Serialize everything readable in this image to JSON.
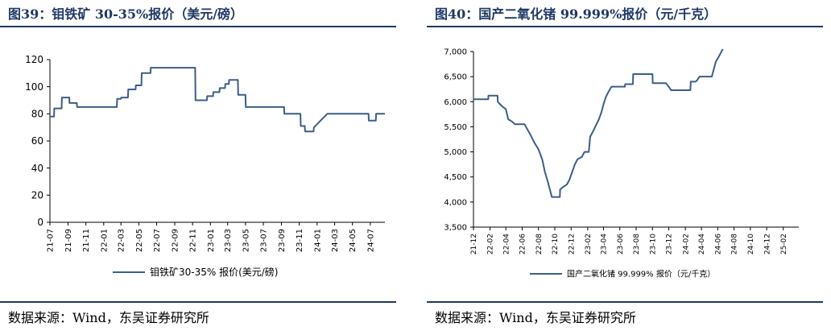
{
  "charts": [
    {
      "figure_title": "图39：钼铁矿 30-35%报价（美元/磅）",
      "source": "数据来源：Wind，东吴证券研究所"
    },
    {
      "figure_title": "图40：国产二氧化锗 99.999%报价（元/千克）",
      "source": "数据来源：Wind，东吴证券研究所"
    }
  ],
  "colors": {
    "line": "#3b5e8a",
    "title": "#1f3864",
    "axis": "#000000"
  },
  "chart_data": [
    {
      "type": "line",
      "title": "",
      "xlabel": "",
      "ylabel": "",
      "ylim": [
        0,
        120
      ],
      "y_ticks": [
        "0",
        "20",
        "40",
        "60",
        "80",
        "100",
        "120"
      ],
      "x_ticks": [
        "21-07",
        "21-09",
        "21-11",
        "22-01",
        "22-03",
        "22-05",
        "22-07",
        "22-09",
        "22-11",
        "23-01",
        "23-03",
        "23-05",
        "23-07",
        "23-09",
        "23-11",
        "24-01",
        "24-03",
        "24-05",
        "24-07"
      ],
      "x_range": [
        "2021-07-01",
        "2024-08-20"
      ],
      "grid": false,
      "legend": "bottom",
      "series": [
        {
          "name": "钼铁矿30-35% 报价(美元/磅)",
          "points": [
            [
              "2021-07-01",
              78
            ],
            [
              "2021-07-15",
              78
            ],
            [
              "2021-07-16",
              84
            ],
            [
              "2021-08-10",
              84
            ],
            [
              "2021-08-11",
              92
            ],
            [
              "2021-09-05",
              92
            ],
            [
              "2021-09-06",
              88
            ],
            [
              "2021-10-01",
              88
            ],
            [
              "2021-10-02",
              85
            ],
            [
              "2022-02-15",
              85
            ],
            [
              "2022-02-16",
              91
            ],
            [
              "2022-03-01",
              91
            ],
            [
              "2022-03-02",
              92
            ],
            [
              "2022-03-25",
              92
            ],
            [
              "2022-03-26",
              98
            ],
            [
              "2022-04-20",
              98
            ],
            [
              "2022-04-21",
              101
            ],
            [
              "2022-05-10",
              101
            ],
            [
              "2022-05-11",
              110
            ],
            [
              "2022-06-10",
              110
            ],
            [
              "2022-06-11",
              114
            ],
            [
              "2022-11-10",
              114
            ],
            [
              "2022-11-11",
              90
            ],
            [
              "2022-12-20",
              90
            ],
            [
              "2022-12-21",
              93
            ],
            [
              "2023-01-10",
              93
            ],
            [
              "2023-01-11",
              96
            ],
            [
              "2023-02-01",
              96
            ],
            [
              "2023-02-02",
              99
            ],
            [
              "2023-02-20",
              99
            ],
            [
              "2023-02-21",
              102
            ],
            [
              "2023-03-05",
              102
            ],
            [
              "2023-03-06",
              105
            ],
            [
              "2023-04-05",
              105
            ],
            [
              "2023-04-06",
              94
            ],
            [
              "2023-05-01",
              94
            ],
            [
              "2023-05-02",
              85
            ],
            [
              "2023-09-10",
              85
            ],
            [
              "2023-09-11",
              80
            ],
            [
              "2023-11-05",
              80
            ],
            [
              "2023-11-06",
              71
            ],
            [
              "2023-11-20",
              71
            ],
            [
              "2023-11-21",
              67
            ],
            [
              "2023-12-20",
              67
            ],
            [
              "2023-12-21",
              70
            ],
            [
              "2024-02-05",
              80
            ],
            [
              "2024-06-25",
              80
            ],
            [
              "2024-06-26",
              75
            ],
            [
              "2024-07-20",
              75
            ],
            [
              "2024-07-21",
              80
            ],
            [
              "2024-08-20",
              80
            ]
          ]
        }
      ]
    },
    {
      "type": "line",
      "title": "",
      "xlabel": "",
      "ylabel": "",
      "ylim": [
        3500,
        7000
      ],
      "y_ticks": [
        "3,500",
        "4,000",
        "4,500",
        "5,000",
        "5,500",
        "6,000",
        "6,500",
        "7,000"
      ],
      "x_ticks": [
        "21-12",
        "22-02",
        "22-04",
        "22-06",
        "22-08",
        "22-10",
        "22-12",
        "23-02",
        "23-04",
        "23-06",
        "23-08",
        "23-10",
        "23-12",
        "24-02",
        "24-04",
        "24-06",
        "24-08",
        "24-10",
        "24-12",
        "25-02"
      ],
      "x_range": [
        "2021-12-01",
        "2025-03-31"
      ],
      "grid": false,
      "legend": "bottom",
      "series": [
        {
          "name": "国产二氧化锗 99.999% 报价（元/千克）",
          "points": [
            [
              "2021-12-01",
              6050
            ],
            [
              "2022-01-25",
              6050
            ],
            [
              "2022-01-26",
              6120
            ],
            [
              "2022-03-01",
              6120
            ],
            [
              "2022-03-02",
              6000
            ],
            [
              "2022-03-10",
              5950
            ],
            [
              "2022-03-20",
              5900
            ],
            [
              "2022-04-01",
              5850
            ],
            [
              "2022-04-10",
              5650
            ],
            [
              "2022-04-25",
              5600
            ],
            [
              "2022-05-05",
              5550
            ],
            [
              "2022-06-10",
              5550
            ],
            [
              "2022-06-15",
              5500
            ],
            [
              "2022-07-01",
              5350
            ],
            [
              "2022-07-15",
              5200
            ],
            [
              "2022-08-01",
              5050
            ],
            [
              "2022-08-15",
              4850
            ],
            [
              "2022-08-25",
              4600
            ],
            [
              "2022-09-05",
              4400
            ],
            [
              "2022-09-20",
              4100
            ],
            [
              "2022-10-20",
              4100
            ],
            [
              "2022-10-21",
              4250
            ],
            [
              "2022-11-01",
              4300
            ],
            [
              "2022-11-15",
              4350
            ],
            [
              "2022-11-25",
              4450
            ],
            [
              "2022-12-05",
              4600
            ],
            [
              "2022-12-15",
              4750
            ],
            [
              "2022-12-25",
              4850
            ],
            [
              "2023-01-10",
              4900
            ],
            [
              "2023-01-20",
              5000
            ],
            [
              "2023-02-05",
              5000
            ],
            [
              "2023-02-10",
              5300
            ],
            [
              "2023-02-20",
              5400
            ],
            [
              "2023-03-01",
              5500
            ],
            [
              "2023-03-15",
              5650
            ],
            [
              "2023-03-25",
              5800
            ],
            [
              "2023-04-01",
              5950
            ],
            [
              "2023-04-10",
              6100
            ],
            [
              "2023-04-20",
              6200
            ],
            [
              "2023-05-01",
              6300
            ],
            [
              "2023-06-20",
              6300
            ],
            [
              "2023-06-21",
              6350
            ],
            [
              "2023-07-20",
              6350
            ],
            [
              "2023-07-21",
              6550
            ],
            [
              "2023-10-01",
              6550
            ],
            [
              "2023-10-02",
              6370
            ],
            [
              "2023-11-20",
              6370
            ],
            [
              "2023-12-01",
              6300
            ],
            [
              "2023-12-10",
              6230
            ],
            [
              "2024-02-20",
              6230
            ],
            [
              "2024-02-21",
              6400
            ],
            [
              "2024-03-10",
              6400
            ],
            [
              "2024-03-15",
              6420
            ],
            [
              "2024-03-25",
              6500
            ],
            [
              "2024-05-10",
              6500
            ],
            [
              "2024-05-20",
              6700
            ],
            [
              "2024-05-25",
              6800
            ],
            [
              "2024-06-05",
              6900
            ],
            [
              "2024-06-15",
              7000
            ],
            [
              "2024-06-20",
              7050
            ]
          ]
        }
      ]
    }
  ]
}
